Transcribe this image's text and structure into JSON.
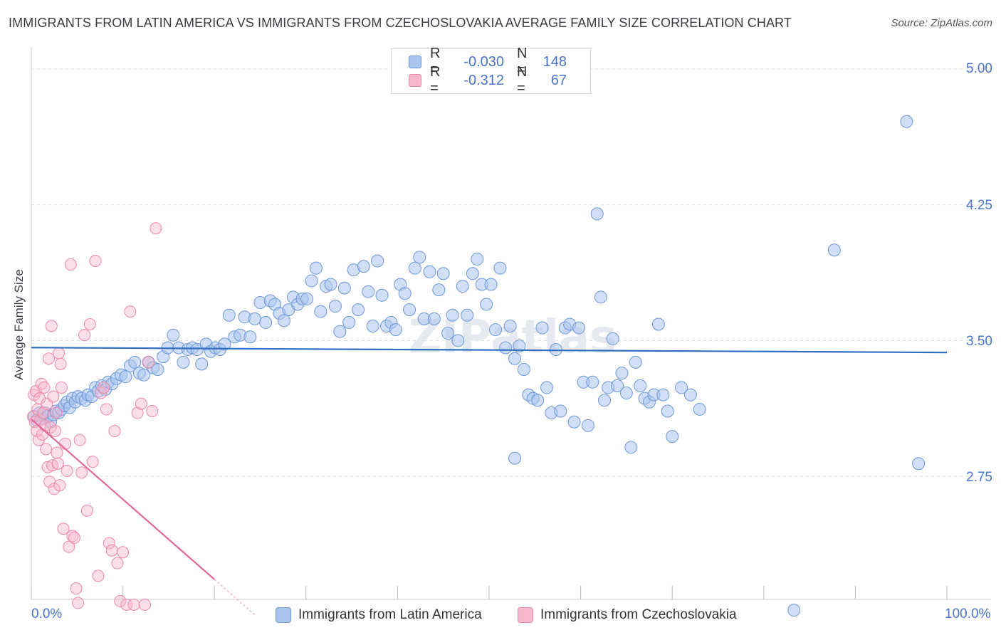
{
  "title": "IMMIGRANTS FROM LATIN AMERICA VS IMMIGRANTS FROM CZECHOSLOVAKIA AVERAGE FAMILY SIZE CORRELATION CHART",
  "source": "Source: ZipAtlas.com",
  "watermark": "ZIPatlas",
  "colors": {
    "blue_fill": "#a9c4ee",
    "blue_stroke": "#6f98d8",
    "blue_line": "#2e6fc4",
    "pink_fill": "#f6b8cc",
    "pink_stroke": "#eb88a8",
    "pink_line": "#e0689a",
    "axis_text": "#4a74c9",
    "grid": "#dddddd"
  },
  "legend": {
    "rows": [
      {
        "r_label": "R =",
        "r_value": "-0.030",
        "n_label": "N =",
        "n_value": "148"
      },
      {
        "r_label": "R =",
        "r_value": "-0.312",
        "n_label": "N =",
        "n_value": "67"
      }
    ]
  },
  "bottom_legend": [
    "Immigrants from Latin America",
    "Immigrants from Czechoslovakia"
  ],
  "chart_data": {
    "type": "scatter",
    "title": "IMMIGRANTS FROM LATIN AMERICA VS IMMIGRANTS FROM CZECHOSLOVAKIA AVERAGE FAMILY SIZE CORRELATION CHART",
    "xlabel": "",
    "ylabel": "Average Family Size",
    "xlim": [
      0,
      100
    ],
    "ylim": [
      2.0,
      5.1
    ],
    "x_tick_labels": [
      "0.0%",
      "100.0%"
    ],
    "y_ticks": [
      2.75,
      3.5,
      4.25,
      5.0
    ],
    "y_tick_labels": [
      "2.75",
      "3.50",
      "4.25",
      "5.00"
    ],
    "grid": true,
    "series": [
      {
        "name": "Immigrants from Latin America",
        "r": -0.03,
        "n": 148,
        "trend": {
          "x0": 0,
          "y0": 3.461,
          "x1": 100,
          "y1": 3.434
        },
        "points": [
          [
            0.3,
            3.08
          ],
          [
            0.6,
            3.06
          ],
          [
            0.9,
            3.1
          ],
          [
            1.2,
            3.07
          ],
          [
            1.5,
            3.1
          ],
          [
            1.8,
            3.08
          ],
          [
            2.1,
            3.05
          ],
          [
            2.4,
            3.09
          ],
          [
            2.7,
            3.11
          ],
          [
            3.0,
            3.1
          ],
          [
            3.3,
            3.12
          ],
          [
            3.6,
            3.14
          ],
          [
            3.9,
            3.16
          ],
          [
            4.2,
            3.13
          ],
          [
            4.5,
            3.18
          ],
          [
            4.8,
            3.16
          ],
          [
            5.1,
            3.19
          ],
          [
            5.5,
            3.18
          ],
          [
            5.9,
            3.17
          ],
          [
            6.2,
            3.2
          ],
          [
            6.6,
            3.19
          ],
          [
            7.0,
            3.24
          ],
          [
            7.3,
            3.22
          ],
          [
            7.7,
            3.25
          ],
          [
            8.1,
            3.23
          ],
          [
            8.4,
            3.27
          ],
          [
            8.8,
            3.26
          ],
          [
            9.3,
            3.29
          ],
          [
            9.8,
            3.31
          ],
          [
            10.3,
            3.3
          ],
          [
            10.8,
            3.36
          ],
          [
            11.3,
            3.38
          ],
          [
            11.8,
            3.32
          ],
          [
            12.3,
            3.31
          ],
          [
            12.8,
            3.38
          ],
          [
            13.3,
            3.35
          ],
          [
            13.8,
            3.34
          ],
          [
            14.4,
            3.41
          ],
          [
            14.9,
            3.46
          ],
          [
            15.5,
            3.53
          ],
          [
            16.1,
            3.46
          ],
          [
            16.6,
            3.38
          ],
          [
            17.1,
            3.45
          ],
          [
            17.6,
            3.46
          ],
          [
            18.1,
            3.45
          ],
          [
            18.6,
            3.37
          ],
          [
            19.1,
            3.48
          ],
          [
            19.6,
            3.44
          ],
          [
            20.1,
            3.46
          ],
          [
            20.6,
            3.45
          ],
          [
            21.1,
            3.48
          ],
          [
            21.6,
            3.64
          ],
          [
            22.2,
            3.52
          ],
          [
            22.8,
            3.53
          ],
          [
            23.3,
            3.63
          ],
          [
            23.9,
            3.52
          ],
          [
            24.4,
            3.62
          ],
          [
            25.0,
            3.71
          ],
          [
            25.6,
            3.6
          ],
          [
            26.1,
            3.72
          ],
          [
            26.6,
            3.7
          ],
          [
            27.1,
            3.65
          ],
          [
            27.6,
            3.61
          ],
          [
            28.1,
            3.67
          ],
          [
            28.6,
            3.74
          ],
          [
            29.1,
            3.7
          ],
          [
            29.6,
            3.73
          ],
          [
            30.1,
            3.73
          ],
          [
            30.6,
            3.83
          ],
          [
            31.1,
            3.9
          ],
          [
            31.6,
            3.66
          ],
          [
            32.2,
            3.8
          ],
          [
            32.7,
            3.81
          ],
          [
            33.2,
            3.69
          ],
          [
            33.7,
            3.55
          ],
          [
            34.2,
            3.79
          ],
          [
            34.7,
            3.6
          ],
          [
            35.2,
            3.89
          ],
          [
            35.7,
            3.67
          ],
          [
            36.3,
            3.91
          ],
          [
            36.8,
            3.77
          ],
          [
            37.3,
            3.58
          ],
          [
            37.8,
            3.94
          ],
          [
            38.3,
            3.75
          ],
          [
            38.8,
            3.58
          ],
          [
            39.3,
            3.6
          ],
          [
            39.8,
            3.56
          ],
          [
            40.3,
            3.81
          ],
          [
            40.8,
            3.76
          ],
          [
            41.3,
            3.67
          ],
          [
            41.9,
            3.9
          ],
          [
            42.4,
            3.96
          ],
          [
            42.9,
            3.62
          ],
          [
            43.5,
            3.88
          ],
          [
            44.0,
            3.62
          ],
          [
            44.5,
            3.78
          ],
          [
            45.0,
            3.87
          ],
          [
            45.5,
            3.54
          ],
          [
            46.0,
            3.64
          ],
          [
            46.6,
            3.5
          ],
          [
            47.1,
            3.8
          ],
          [
            47.6,
            3.64
          ],
          [
            48.2,
            3.87
          ],
          [
            48.7,
            3.95
          ],
          [
            49.2,
            3.81
          ],
          [
            49.7,
            3.7
          ],
          [
            50.2,
            3.81
          ],
          [
            50.7,
            3.56
          ],
          [
            51.2,
            3.9
          ],
          [
            51.8,
            3.46
          ],
          [
            52.3,
            3.58
          ],
          [
            52.8,
            3.4
          ],
          [
            53.3,
            3.47
          ],
          [
            53.8,
            3.34
          ],
          [
            54.3,
            3.2
          ],
          [
            54.8,
            3.18
          ],
          [
            55.3,
            3.17
          ],
          [
            55.8,
            3.57
          ],
          [
            56.3,
            3.24
          ],
          [
            56.8,
            3.1
          ],
          [
            57.3,
            3.45
          ],
          [
            57.8,
            3.11
          ],
          [
            58.3,
            3.57
          ],
          [
            58.8,
            3.59
          ],
          [
            59.3,
            3.05
          ],
          [
            59.8,
            3.57
          ],
          [
            60.3,
            3.27
          ],
          [
            60.8,
            3.03
          ],
          [
            61.3,
            3.27
          ],
          [
            61.8,
            4.2
          ],
          [
            62.2,
            3.74
          ],
          [
            62.6,
            3.17
          ],
          [
            63.0,
            3.24
          ],
          [
            63.5,
            3.51
          ],
          [
            64.0,
            3.25
          ],
          [
            64.5,
            3.32
          ],
          [
            65.0,
            3.21
          ],
          [
            65.5,
            2.91
          ],
          [
            66.0,
            3.38
          ],
          [
            66.5,
            3.25
          ],
          [
            67.0,
            3.18
          ],
          [
            67.5,
            3.16
          ],
          [
            68.0,
            3.2
          ],
          [
            68.5,
            3.59
          ],
          [
            69.0,
            3.2
          ],
          [
            69.5,
            3.11
          ],
          [
            70.0,
            2.97
          ],
          [
            71.0,
            3.24
          ],
          [
            72.0,
            3.2
          ],
          [
            73.0,
            3.12
          ]
        ]
      },
      {
        "name": "Immigrants from Czechoslovakia",
        "r": -0.312,
        "n": 67,
        "trend": {
          "x0": 0,
          "y0": 3.065,
          "x1": 20,
          "y1": 2.18
        },
        "trend_dashed_to": {
          "x": 24.5,
          "y": 1.98
        },
        "points": [
          [
            0.2,
            3.08
          ],
          [
            0.3,
            3.2
          ],
          [
            0.4,
            3.05
          ],
          [
            0.5,
            3.22
          ],
          [
            0.6,
            3.0
          ],
          [
            0.7,
            3.12
          ],
          [
            0.8,
            2.95
          ],
          [
            0.9,
            3.18
          ],
          [
            1.0,
            3.06
          ],
          [
            1.1,
            3.26
          ],
          [
            1.2,
            2.98
          ],
          [
            1.3,
            3.1
          ],
          [
            1.4,
            3.24
          ],
          [
            1.5,
            3.03
          ],
          [
            1.6,
            2.9
          ],
          [
            1.7,
            3.15
          ],
          [
            1.8,
            2.8
          ],
          [
            1.9,
            3.4
          ],
          [
            2.0,
            2.72
          ],
          [
            2.1,
            3.02
          ],
          [
            2.2,
            3.58
          ],
          [
            2.3,
            2.81
          ],
          [
            2.4,
            3.19
          ],
          [
            2.5,
            2.68
          ],
          [
            2.6,
            3.0
          ],
          [
            2.7,
            3.1
          ],
          [
            2.8,
            2.88
          ],
          [
            2.9,
            2.82
          ],
          [
            3.0,
            3.43
          ],
          [
            3.1,
            2.7
          ],
          [
            3.2,
            3.37
          ],
          [
            3.3,
            3.24
          ],
          [
            3.5,
            2.46
          ],
          [
            3.7,
            2.93
          ],
          [
            3.9,
            2.78
          ],
          [
            4.1,
            2.36
          ],
          [
            4.3,
            3.92
          ],
          [
            4.5,
            2.42
          ],
          [
            4.7,
            2.41
          ],
          [
            4.9,
            2.13
          ],
          [
            5.1,
            2.05
          ],
          [
            5.3,
            2.95
          ],
          [
            5.5,
            2.77
          ],
          [
            5.8,
            3.53
          ],
          [
            6.1,
            2.56
          ],
          [
            6.4,
            3.59
          ],
          [
            6.7,
            2.83
          ],
          [
            7.0,
            3.94
          ],
          [
            7.3,
            2.2
          ],
          [
            7.6,
            3.21
          ],
          [
            7.9,
            3.24
          ],
          [
            8.2,
            3.12
          ],
          [
            8.5,
            2.38
          ],
          [
            8.8,
            2.34
          ],
          [
            9.1,
            3.0
          ],
          [
            9.4,
            2.27
          ],
          [
            9.7,
            2.06
          ],
          [
            10.0,
            2.33
          ],
          [
            10.4,
            2.04
          ],
          [
            10.8,
            3.66
          ],
          [
            11.2,
            2.04
          ],
          [
            11.6,
            3.1
          ],
          [
            12.0,
            3.15
          ],
          [
            12.4,
            2.04
          ],
          [
            12.8,
            3.38
          ],
          [
            13.2,
            3.11
          ],
          [
            13.6,
            4.12
          ]
        ]
      }
    ]
  }
}
